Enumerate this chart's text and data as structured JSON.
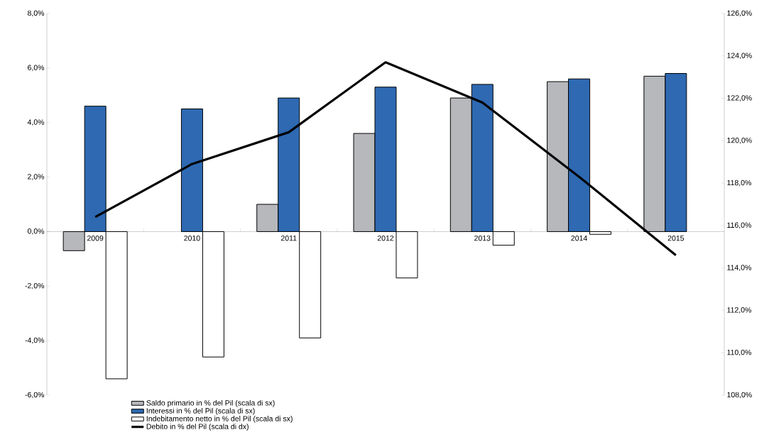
{
  "chart_data": {
    "type": "bar",
    "categories": [
      "2009",
      "2010",
      "2011",
      "2012",
      "2013",
      "2014",
      "2015"
    ],
    "series": [
      {
        "name": "Saldo primario in % del Pil (scala di sx)",
        "color": "#b7b8bc",
        "values": [
          -0.7,
          null,
          1.0,
          3.6,
          4.9,
          5.5,
          5.7
        ]
      },
      {
        "name": "Interessi in % del Pil (scala di sx)",
        "color": "#2e69b2",
        "values": [
          4.6,
          4.5,
          4.9,
          5.3,
          5.4,
          5.6,
          5.8
        ]
      },
      {
        "name": "Indebitamento netto in % del Pil (scala di sx)",
        "color": "#ffffff",
        "values": [
          -5.4,
          -4.6,
          -3.9,
          -1.7,
          -0.5,
          -0.1,
          null
        ]
      },
      {
        "name": "Debito in % del Pil (scala di dx)",
        "type": "line",
        "axis": "y2",
        "color": "#000000",
        "values": [
          116.4,
          118.9,
          120.4,
          123.7,
          121.8,
          118.3,
          114.6
        ]
      }
    ],
    "ylim": [
      -6,
      8
    ],
    "yticks": [
      {
        "value": -6,
        "label": "-6,0%"
      },
      {
        "value": -4,
        "label": "-4,0%"
      },
      {
        "value": -2,
        "label": "-2,0%"
      },
      {
        "value": 0,
        "label": "0,0%"
      },
      {
        "value": 2,
        "label": "2,0%"
      },
      {
        "value": 4,
        "label": "4,0%"
      },
      {
        "value": 6,
        "label": "6,0%"
      },
      {
        "value": 8,
        "label": "8,0%"
      }
    ],
    "y2lim": [
      108,
      126
    ],
    "y2ticks": [
      {
        "value": 108,
        "label": "108,0%"
      },
      {
        "value": 110,
        "label": "110,0%"
      },
      {
        "value": 112,
        "label": "112,0%"
      },
      {
        "value": 114,
        "label": "114,0%"
      },
      {
        "value": 116,
        "label": "116,0%"
      },
      {
        "value": 118,
        "label": "118,0%"
      },
      {
        "value": 120,
        "label": "120,0%"
      },
      {
        "value": 122,
        "label": "122,0%"
      },
      {
        "value": 124,
        "label": "124,0%"
      },
      {
        "value": 126,
        "label": "126,0%"
      }
    ],
    "legend": "bottom"
  }
}
